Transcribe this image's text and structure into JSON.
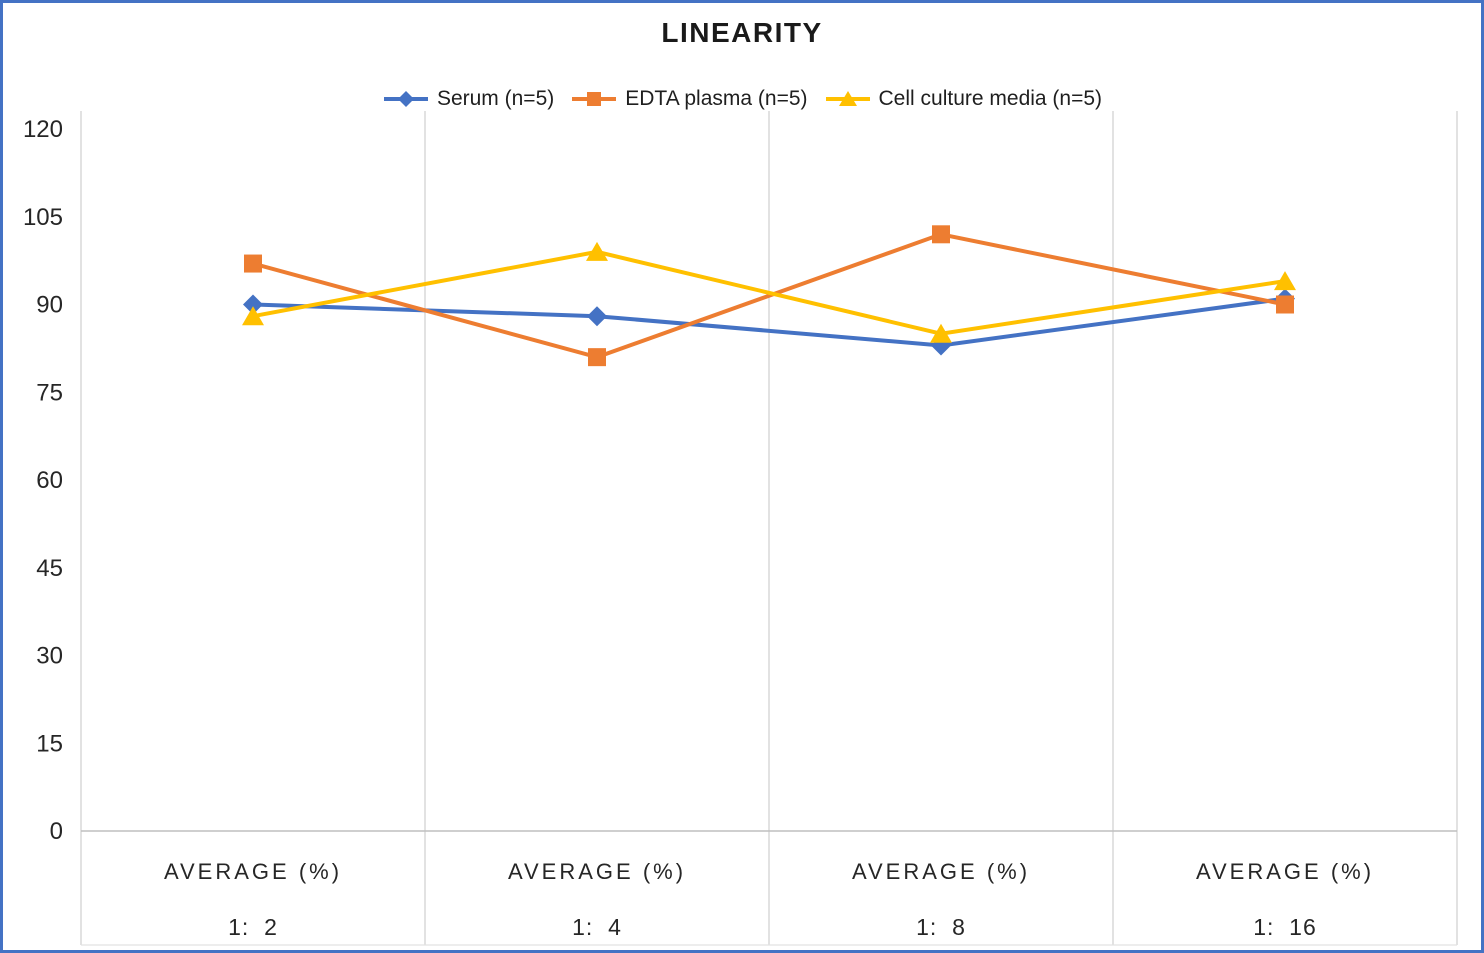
{
  "title": "LINEARITY",
  "colors": {
    "frame_border": "#4472C4",
    "gridline": "#D9D9D9",
    "axis_line": "#BFBFBF",
    "label_area_line": "#E2E2E2",
    "tick_text": "#262626",
    "title_text": "#1A1A1A"
  },
  "legend": {
    "position": "top",
    "items": [
      {
        "label": "Serum (n=5)",
        "marker": "diamond",
        "color": "#4472C4"
      },
      {
        "label": "EDTA plasma (n=5)",
        "marker": "square",
        "color": "#ED7D31"
      },
      {
        "label": "Cell culture media (n=5)",
        "marker": "triangle",
        "color": "#FFC000"
      }
    ]
  },
  "chart_data": {
    "type": "line",
    "title": "LINEARITY",
    "x_group_label": "AVERAGE (%)",
    "categories": [
      "1:  2",
      "1:  4",
      "1:  8",
      "1:  16"
    ],
    "series": [
      {
        "name": "Serum (n=5)",
        "marker": "diamond",
        "color": "#4472C4",
        "values": [
          90,
          88,
          83,
          91
        ]
      },
      {
        "name": "EDTA plasma (n=5)",
        "marker": "square",
        "color": "#ED7D31",
        "values": [
          97,
          81,
          102,
          90
        ]
      },
      {
        "name": "Cell culture media (n=5)",
        "marker": "triangle",
        "color": "#FFC000",
        "values": [
          88,
          99,
          85,
          94
        ]
      }
    ],
    "y_axis": {
      "min": 0,
      "max": 120,
      "tick_step": 15,
      "ticks": [
        0,
        15,
        30,
        45,
        60,
        75,
        90,
        105,
        120
      ]
    },
    "gridlines": "vertical-only",
    "legend_position": "top"
  }
}
